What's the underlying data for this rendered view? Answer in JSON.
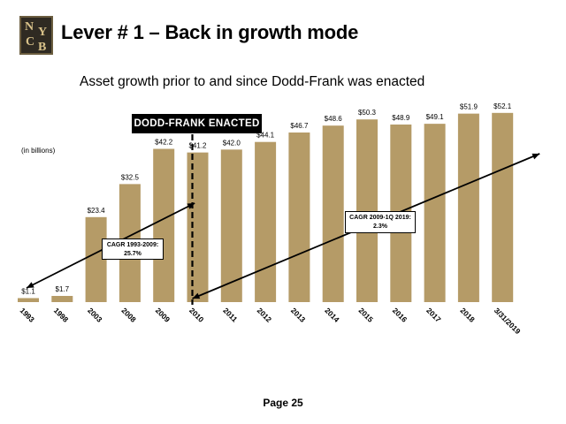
{
  "logo": {
    "letters": [
      "N",
      "Y",
      "C",
      "B"
    ]
  },
  "header": {
    "title": "Lever # 1 – Back in growth mode",
    "subtitle": "Asset growth prior to and since Dodd-Frank was enacted"
  },
  "dodd_frank_label": "DODD-FRANK ENACTED",
  "units_label": "(in billions)",
  "page_label": "Page 25",
  "colors": {
    "bar": "#b59b67",
    "text": "#000000",
    "accent_box": "#000000"
  },
  "chart_data": {
    "type": "bar",
    "categories": [
      "1993",
      "1998",
      "2003",
      "2008",
      "2009",
      "2010",
      "2011",
      "2012",
      "2013",
      "2014",
      "2015",
      "2016",
      "2017",
      "2018",
      "3/31/2019"
    ],
    "values": [
      1.1,
      1.7,
      23.4,
      32.5,
      42.2,
      41.2,
      42.0,
      44.1,
      46.7,
      48.6,
      50.3,
      48.9,
      49.1,
      51.9,
      52.1
    ],
    "value_labels": [
      "$1.1",
      "$1.7",
      "$23.4",
      "$32.5",
      "$42.2",
      "$41.2",
      "$42.0",
      "$44.1",
      "$46.7",
      "$48.6",
      "$50.3",
      "$48.9",
      "$49.1",
      "$51.9",
      "$52.1"
    ],
    "ylim": [
      0,
      54
    ],
    "ylabel": "",
    "xlabel": "",
    "grid": false,
    "annotations": [
      {
        "text_lines": [
          "CAGR 1993-2009:",
          "25.7%"
        ],
        "from": "1993",
        "to": "2009"
      },
      {
        "text_lines": [
          "CAGR 2009-1Q 2019:",
          "2.3%"
        ],
        "from": "2010",
        "to": "3/31/2019"
      }
    ],
    "marker": {
      "label": "DODD-FRANK ENACTED",
      "at": "2010"
    }
  }
}
